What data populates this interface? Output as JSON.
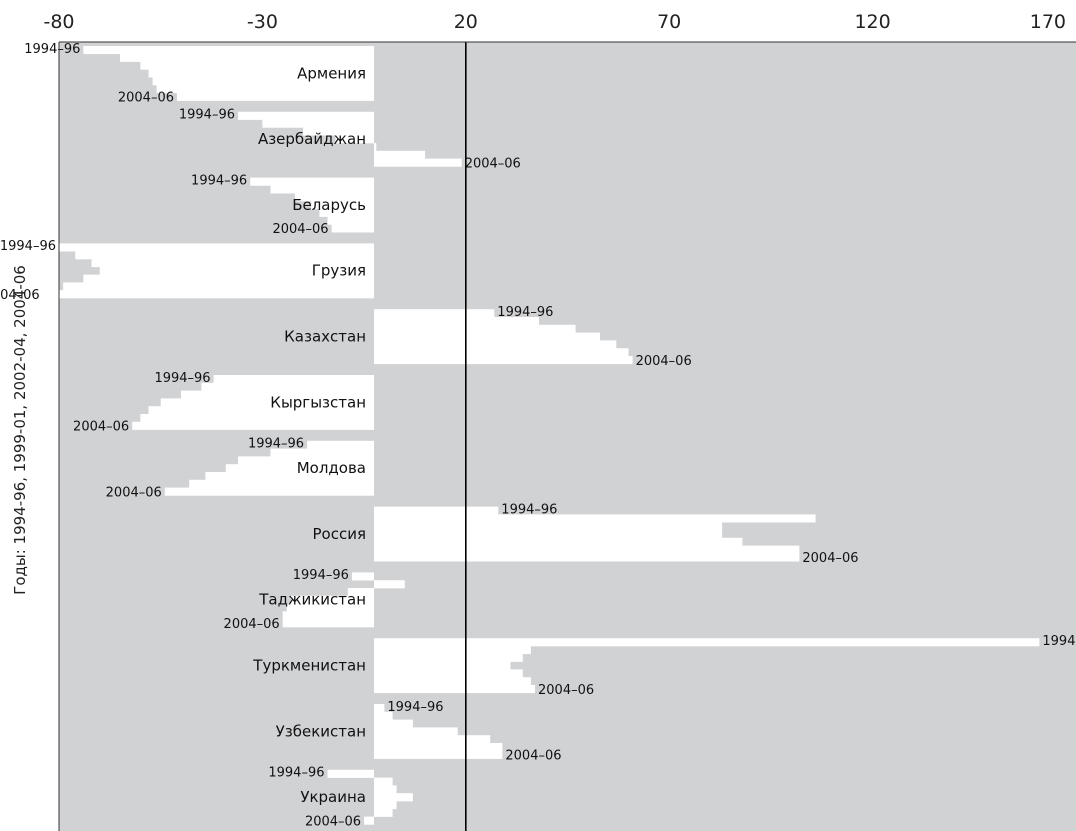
{
  "chart_data": {
    "type": "bar",
    "orientation": "horizontal",
    "ylabel": "Годы: 1994-96, 1999-01, 2002-04, 2004-06",
    "xlim": [
      -80,
      170
    ],
    "x_ticks": [
      "-80",
      "-30",
      "20",
      "70",
      "120",
      "170"
    ],
    "reference_line": 20,
    "grid": false,
    "year_labels": {
      "first": "1994–96",
      "last": "2004–06"
    },
    "colors": {
      "plot_background": "#d1d2d4",
      "bar": "#ffffff",
      "axis": "#000000"
    },
    "series": [
      {
        "name": "Армения",
        "values": [
          -74,
          -65,
          -60,
          -58,
          -57,
          -56,
          -51
        ]
      },
      {
        "name": "Азербайджан",
        "values": [
          -36,
          -30,
          -20,
          -12,
          -2,
          10,
          19
        ]
      },
      {
        "name": "Беларусь",
        "values": [
          -33,
          -28,
          -22,
          -18,
          -16,
          -14,
          -13
        ]
      },
      {
        "name": "Грузия",
        "values": [
          -80,
          -76,
          -72,
          -70,
          -74,
          -79,
          -84
        ]
      },
      {
        "name": "Казахстан",
        "values": [
          27,
          38,
          47,
          53,
          57,
          60,
          61
        ]
      },
      {
        "name": "Кыргызстан",
        "values": [
          -42,
          -45,
          -50,
          -55,
          -58,
          -60,
          -62
        ]
      },
      {
        "name": "Молдова",
        "values": [
          -19,
          -28,
          -36,
          -39,
          -44,
          -48,
          -54
        ]
      },
      {
        "name": "Россия",
        "values": [
          28,
          106,
          83,
          83,
          88,
          102,
          102
        ]
      },
      {
        "name": "Таджикистан",
        "values": [
          -8,
          5,
          -9,
          -23,
          -24,
          -25,
          -25
        ]
      },
      {
        "name": "Туркменистан",
        "values": [
          161,
          36,
          34,
          31,
          34,
          36,
          37
        ]
      },
      {
        "name": "Узбекистан",
        "values": [
          0,
          2,
          7,
          18,
          26,
          29,
          29
        ]
      },
      {
        "name": "Украина",
        "values": [
          -14,
          2,
          3,
          7,
          3,
          2,
          -5
        ]
      }
    ]
  }
}
